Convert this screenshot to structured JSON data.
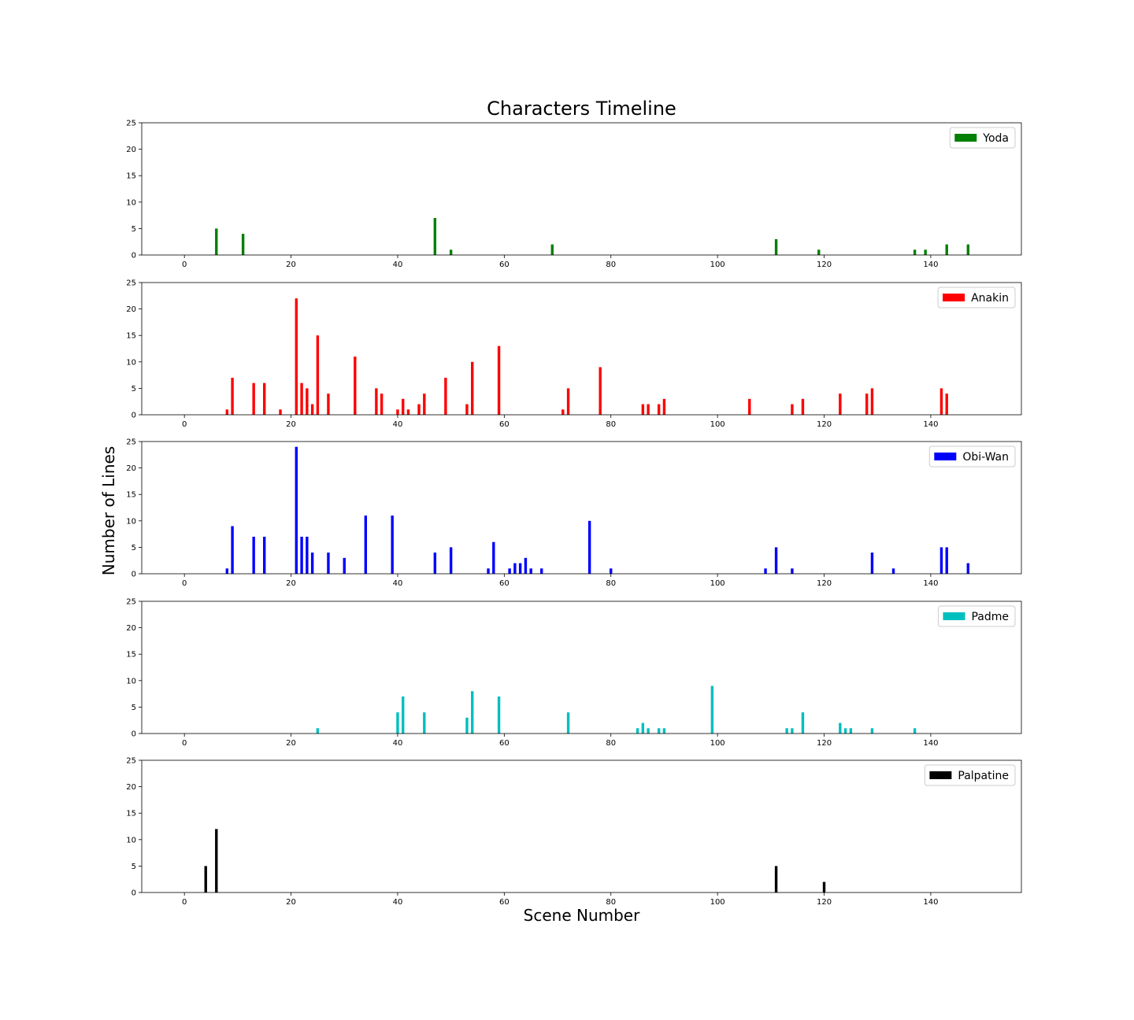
{
  "chart_data": {
    "type": "bar",
    "title": "Characters Timeline",
    "xlabel": "Scene Number",
    "ylabel": "Number of Lines",
    "xlim": [
      -8,
      157
    ],
    "ylim": [
      0,
      25
    ],
    "xticks": [
      0,
      20,
      40,
      60,
      80,
      100,
      120,
      140
    ],
    "yticks": [
      0,
      5,
      10,
      15,
      20,
      25
    ],
    "legend_position": "top-right",
    "series": [
      {
        "name": "Yoda",
        "color": "#008000",
        "x": [
          6,
          11,
          47,
          50,
          69,
          111,
          119,
          137,
          139,
          143,
          147
        ],
        "values": [
          5,
          4,
          7,
          1,
          2,
          3,
          1,
          1,
          1,
          2,
          2
        ]
      },
      {
        "name": "Anakin",
        "color": "#ff0000",
        "x": [
          8,
          9,
          13,
          15,
          18,
          21,
          22,
          23,
          24,
          25,
          27,
          32,
          36,
          37,
          40,
          41,
          42,
          44,
          45,
          49,
          53,
          54,
          59,
          71,
          72,
          78,
          86,
          87,
          89,
          90,
          106,
          114,
          116,
          123,
          128,
          129,
          142,
          143
        ],
        "values": [
          1,
          7,
          6,
          6,
          1,
          22,
          6,
          5,
          2,
          15,
          4,
          11,
          5,
          4,
          1,
          3,
          1,
          2,
          4,
          7,
          2,
          10,
          13,
          1,
          5,
          9,
          2,
          2,
          2,
          3,
          3,
          2,
          3,
          4,
          4,
          5,
          5,
          4
        ]
      },
      {
        "name": "Obi-Wan",
        "color": "#0000ff",
        "x": [
          8,
          9,
          13,
          15,
          21,
          22,
          23,
          24,
          27,
          30,
          34,
          39,
          47,
          50,
          57,
          58,
          61,
          62,
          63,
          64,
          65,
          67,
          76,
          80,
          109,
          111,
          114,
          129,
          133,
          142,
          143,
          147
        ],
        "values": [
          1,
          9,
          7,
          7,
          24,
          7,
          7,
          4,
          4,
          3,
          11,
          11,
          4,
          5,
          1,
          6,
          1,
          2,
          2,
          3,
          1,
          1,
          10,
          1,
          1,
          5,
          1,
          4,
          1,
          5,
          5,
          2
        ]
      },
      {
        "name": "Padme",
        "color": "#00bfbf",
        "x": [
          25,
          40,
          41,
          45,
          53,
          54,
          59,
          72,
          85,
          86,
          87,
          89,
          90,
          99,
          113,
          114,
          116,
          123,
          124,
          125,
          129,
          137
        ],
        "values": [
          1,
          4,
          7,
          4,
          3,
          8,
          7,
          4,
          1,
          2,
          1,
          1,
          1,
          9,
          1,
          1,
          4,
          2,
          1,
          1,
          1,
          1
        ]
      },
      {
        "name": "Palpatine",
        "color": "#000000",
        "x": [
          4,
          6,
          111,
          120
        ],
        "values": [
          5,
          12,
          5,
          2
        ]
      }
    ]
  }
}
